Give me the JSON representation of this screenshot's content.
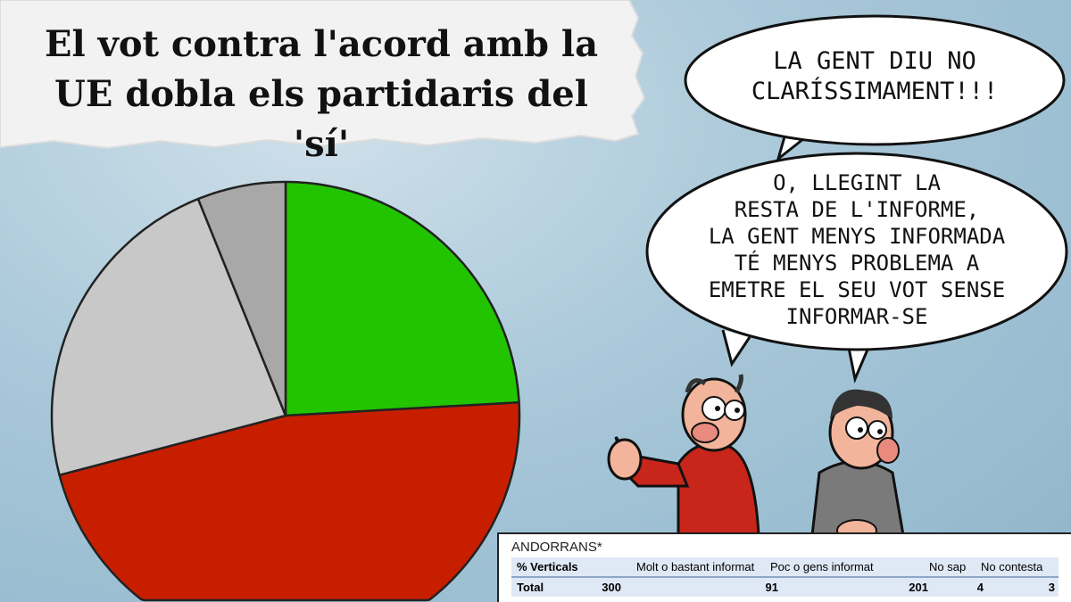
{
  "headline": {
    "line1": "El vot contra l'acord amb la",
    "line2": "UE dobla els partidaris del 'sí'"
  },
  "bubbles": {
    "top": [
      "LA GENT DiU NO",
      "CLARÍSSIMAMENT!!!"
    ],
    "bottom": [
      "O, LLEGiNT LA",
      "RESTA DE L'iNFORME,",
      "LA GENT MENYS iNFORMADA",
      "TÉ MENYS PROBLEMA A",
      "EMETRE EL SEU VOT SENSE",
      "iNFORMAR-SE"
    ]
  },
  "table": {
    "caption": "ANDORRANS*",
    "headers": [
      "% Verticals",
      "",
      "Molt o bastant informat",
      "Poc o gens informat",
      "No sap",
      "No contesta"
    ],
    "rows": [
      [
        "Total",
        "300",
        "91",
        "201",
        "4",
        "3"
      ]
    ]
  },
  "chart_data": {
    "type": "pie",
    "title": "",
    "slices": [
      {
        "color": "#22c400",
        "value": 24.1
      },
      {
        "color": "#c81e00",
        "value": 46.8
      },
      {
        "color": "#c8c8c8",
        "value": 23.0
      },
      {
        "color": "#a8a8a8",
        "value": 6.1
      }
    ],
    "start": "top",
    "direction": "clockwise"
  }
}
